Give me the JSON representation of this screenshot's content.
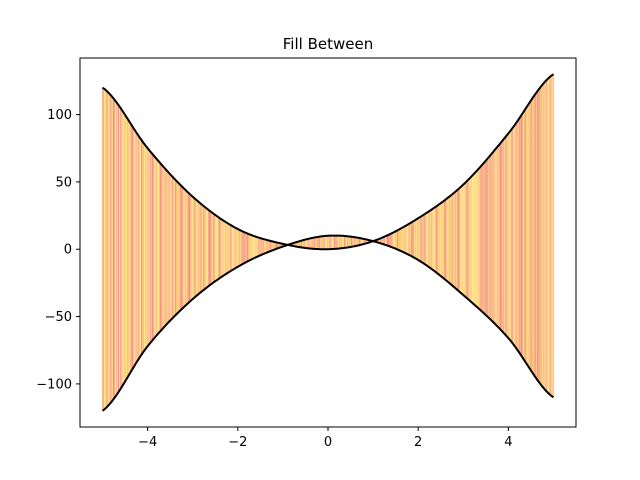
{
  "chart_data": {
    "type": "area",
    "title": "Fill Between",
    "xlabel": "",
    "ylabel": "",
    "xlim": [
      -5.5,
      5.5
    ],
    "ylim": [
      -132,
      142
    ],
    "x_ticks": [
      -4,
      -2,
      0,
      2,
      4
    ],
    "x_tick_labels": [
      "−4",
      "−2",
      "0",
      "2",
      "4"
    ],
    "y_ticks": [
      100,
      50,
      0,
      -50,
      -100
    ],
    "y_tick_labels": [
      "100",
      "50",
      "0",
      "−50",
      "−100"
    ],
    "grid": false,
    "series": [
      {
        "x": [
          -5,
          -4,
          -3,
          -2,
          -1,
          0,
          1,
          2,
          3,
          4,
          5
        ],
        "values": [
          120,
          75,
          39,
          15,
          4,
          0,
          6,
          23,
          48,
          86,
          130
        ]
      },
      {
        "x": [
          -5,
          -4,
          -3,
          -2,
          -1,
          0,
          1,
          2,
          3,
          4,
          5
        ],
        "values": [
          -120,
          -72,
          -37,
          -13,
          2,
          10,
          6,
          -8,
          -34,
          -66,
          -110
        ]
      }
    ],
    "fill": {
      "between": [
        0,
        1
      ],
      "x_range": [
        -5,
        5
      ],
      "colors": [
        "#fde68a",
        "#fdd58a",
        "#fbbf8c",
        "#f9a98f",
        "#f78d8d",
        "#fcd07c"
      ]
    },
    "curve_color": "#000000"
  }
}
